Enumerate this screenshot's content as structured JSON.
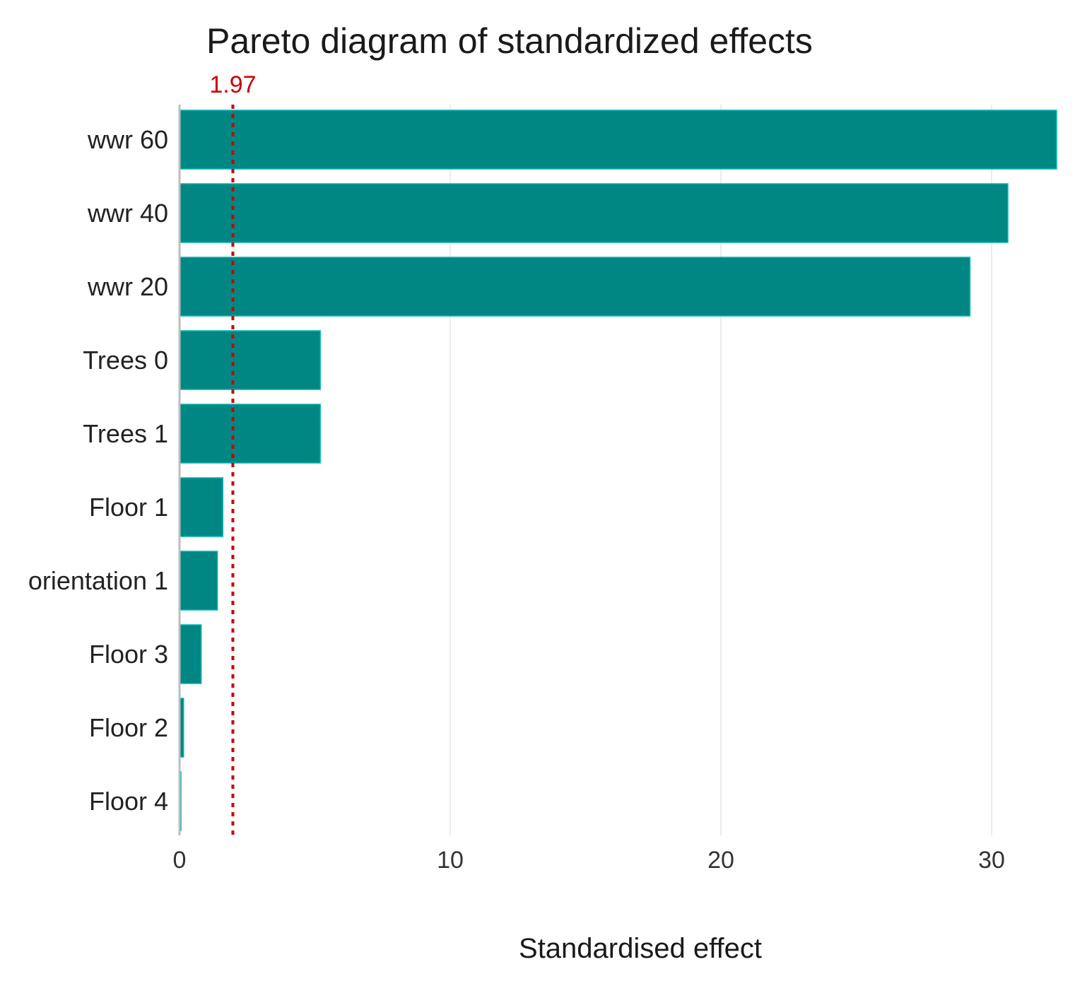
{
  "chart_data": {
    "type": "bar",
    "orientation": "horizontal",
    "title": "Pareto diagram of standardized effects",
    "xlabel": "Standardised effect",
    "ylabel": "",
    "categories": [
      "wwr 60",
      "wwr 40",
      "wwr 20",
      "Trees 0",
      "Trees 1",
      "Floor 1",
      "orientation 1",
      "Floor 3",
      "Floor 2",
      "Floor 4"
    ],
    "values": [
      32.4,
      30.6,
      29.2,
      5.2,
      5.2,
      1.6,
      1.4,
      0.8,
      0.15,
      0.05
    ],
    "xlim": [
      0,
      32.4
    ],
    "xticks": [
      0,
      10,
      20,
      30
    ],
    "xtick_labels": [
      "0",
      "10",
      "20",
      "30"
    ],
    "reference_line": {
      "value": 1.97,
      "label": "1.97",
      "style": "dotted"
    },
    "grid": "vertical",
    "legend": "none",
    "colors": {
      "bar": "#008784",
      "bar_edge": "#00b5b0",
      "reference": "#cc0000",
      "grid": "#ebebeb",
      "axis": "#bdbdbd"
    }
  }
}
